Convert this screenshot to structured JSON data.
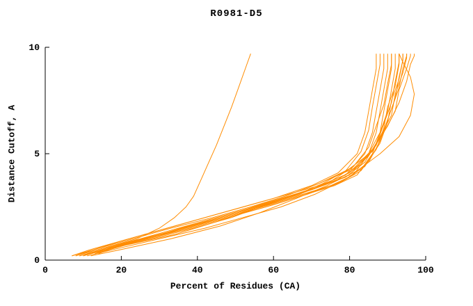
{
  "colors": {
    "line": "#ff8c00",
    "axis": "#000000",
    "background": "#ffffff"
  },
  "chart_data": {
    "type": "line",
    "title": "R0981-D5",
    "xlabel": "Percent of Residues (CA)",
    "ylabel": "Distance Cutoff, A",
    "xlim": [
      0,
      100
    ],
    "ylim": [
      0,
      10
    ],
    "x_ticks": [
      0,
      20,
      40,
      60,
      80,
      100
    ],
    "y_ticks": [
      0,
      5,
      10
    ],
    "grid": false,
    "legend": "none",
    "line_color": "#ff8c00",
    "series": [
      {
        "points": [
          [
            7,
            0.2
          ],
          [
            12,
            0.5
          ],
          [
            22,
            1
          ],
          [
            32,
            1.5
          ],
          [
            42,
            2
          ],
          [
            52,
            2.5
          ],
          [
            62,
            3
          ],
          [
            72,
            3.5
          ],
          [
            79,
            4
          ],
          [
            84,
            5
          ],
          [
            86,
            6
          ],
          [
            87,
            7
          ],
          [
            88,
            8
          ],
          [
            89,
            9
          ],
          [
            89,
            9.7
          ]
        ]
      },
      {
        "points": [
          [
            8,
            0.2
          ],
          [
            14,
            0.5
          ],
          [
            25,
            1
          ],
          [
            35,
            1.5
          ],
          [
            45,
            2
          ],
          [
            55,
            2.5
          ],
          [
            64,
            3
          ],
          [
            73,
            3.5
          ],
          [
            80,
            4
          ],
          [
            85,
            5
          ],
          [
            87,
            6
          ],
          [
            88,
            7
          ],
          [
            89,
            8
          ],
          [
            90,
            9
          ],
          [
            90,
            9.7
          ]
        ]
      },
      {
        "points": [
          [
            9,
            0.2
          ],
          [
            15,
            0.5
          ],
          [
            26,
            1
          ],
          [
            36,
            1.5
          ],
          [
            47,
            2
          ],
          [
            57,
            2.5
          ],
          [
            66,
            3
          ],
          [
            75,
            3.5
          ],
          [
            81,
            4
          ],
          [
            85,
            5
          ],
          [
            88,
            6
          ],
          [
            89,
            7
          ],
          [
            90,
            8
          ],
          [
            91,
            9
          ],
          [
            91,
            9.7
          ]
        ]
      },
      {
        "points": [
          [
            10,
            0.2
          ],
          [
            16,
            0.5
          ],
          [
            27,
            1
          ],
          [
            38,
            1.5
          ],
          [
            48,
            2
          ],
          [
            58,
            2.5
          ],
          [
            67,
            3
          ],
          [
            76,
            3.5
          ],
          [
            82,
            4
          ],
          [
            86,
            5
          ],
          [
            88,
            6
          ],
          [
            90,
            7
          ],
          [
            91,
            8
          ],
          [
            92,
            9
          ],
          [
            92,
            9.7
          ]
        ]
      },
      {
        "points": [
          [
            11,
            0.3
          ],
          [
            17,
            0.6
          ],
          [
            28,
            1.1
          ],
          [
            39,
            1.6
          ],
          [
            49,
            2.1
          ],
          [
            59,
            2.6
          ],
          [
            68,
            3.1
          ],
          [
            77,
            3.6
          ],
          [
            83,
            4.2
          ],
          [
            87,
            5.2
          ],
          [
            89,
            6.2
          ],
          [
            90,
            7.2
          ],
          [
            92,
            8.2
          ],
          [
            93,
            9.2
          ],
          [
            93,
            9.7
          ]
        ]
      },
      {
        "points": [
          [
            12,
            0.3
          ],
          [
            18,
            0.6
          ],
          [
            29,
            1.1
          ],
          [
            40,
            1.6
          ],
          [
            50,
            2.1
          ],
          [
            60,
            2.6
          ],
          [
            69,
            3.1
          ],
          [
            78,
            3.7
          ],
          [
            84,
            4.4
          ],
          [
            88,
            5.5
          ],
          [
            90,
            6.5
          ],
          [
            91,
            7.5
          ],
          [
            93,
            8.5
          ],
          [
            94,
            9.4
          ],
          [
            94,
            9.7
          ]
        ]
      },
      {
        "points": [
          [
            13,
            0.3
          ],
          [
            19,
            0.7
          ],
          [
            30,
            1.2
          ],
          [
            41,
            1.7
          ],
          [
            51,
            2.2
          ],
          [
            61,
            2.8
          ],
          [
            70,
            3.3
          ],
          [
            79,
            3.9
          ],
          [
            84,
            4.6
          ],
          [
            88,
            5.8
          ],
          [
            91,
            6.8
          ],
          [
            92,
            7.8
          ],
          [
            94,
            8.8
          ],
          [
            95,
            9.5
          ],
          [
            95,
            9.7
          ]
        ]
      },
      {
        "points": [
          [
            14,
            0.3
          ],
          [
            20,
            0.7
          ],
          [
            31,
            1.2
          ],
          [
            42,
            1.8
          ],
          [
            52,
            2.3
          ],
          [
            62,
            2.9
          ],
          [
            71,
            3.4
          ],
          [
            80,
            4.1
          ],
          [
            85,
            4.9
          ],
          [
            89,
            6
          ],
          [
            92,
            7
          ],
          [
            93,
            8
          ],
          [
            95,
            9
          ],
          [
            96,
            9.6
          ],
          [
            96,
            9.7
          ]
        ]
      },
      {
        "points": [
          [
            15,
            0.4
          ],
          [
            21,
            0.8
          ],
          [
            32,
            1.3
          ],
          [
            43,
            1.9
          ],
          [
            53,
            2.4
          ],
          [
            63,
            3
          ],
          [
            72,
            3.6
          ],
          [
            81,
            4.3
          ],
          [
            86,
            5.2
          ],
          [
            90,
            6.3
          ],
          [
            93,
            7.4
          ],
          [
            95,
            8.4
          ],
          [
            96,
            9.2
          ],
          [
            97,
            9.6
          ],
          [
            97,
            9.7
          ]
        ]
      },
      {
        "points": [
          [
            12,
            0.2
          ],
          [
            20,
            0.5
          ],
          [
            33,
            1
          ],
          [
            46,
            1.6
          ],
          [
            56,
            2.2
          ],
          [
            66,
            2.9
          ],
          [
            74,
            3.5
          ],
          [
            82,
            4.2
          ],
          [
            88,
            5
          ],
          [
            93,
            5.8
          ],
          [
            96,
            6.8
          ],
          [
            97,
            7.8
          ],
          [
            96,
            8.6
          ],
          [
            94,
            9.3
          ],
          [
            93,
            9.7
          ]
        ]
      },
      {
        "points": [
          [
            8,
            0.2
          ],
          [
            13,
            0.5
          ],
          [
            23,
            1
          ],
          [
            33,
            1.5
          ],
          [
            44,
            2
          ],
          [
            54,
            2.5
          ],
          [
            63,
            3
          ],
          [
            72,
            3.6
          ],
          [
            79,
            4.2
          ],
          [
            83,
            5.1
          ],
          [
            85,
            6.1
          ],
          [
            86,
            7.2
          ],
          [
            87,
            8.2
          ],
          [
            88,
            9.2
          ],
          [
            88,
            9.7
          ]
        ]
      },
      {
        "points": [
          [
            10,
            0.2
          ],
          [
            17,
            0.6
          ],
          [
            29,
            1.1
          ],
          [
            40,
            1.7
          ],
          [
            50,
            2.2
          ],
          [
            59,
            2.7
          ],
          [
            68,
            3.2
          ],
          [
            77,
            3.8
          ],
          [
            83,
            4.5
          ],
          [
            87,
            5.4
          ],
          [
            89,
            6.4
          ],
          [
            91,
            7.4
          ],
          [
            92,
            8.4
          ],
          [
            93,
            9.3
          ],
          [
            93,
            9.7
          ]
        ]
      },
      {
        "points": [
          [
            11,
            0.2
          ],
          [
            18,
            0.5
          ],
          [
            30,
            1
          ],
          [
            42,
            1.5
          ],
          [
            52,
            2
          ],
          [
            62,
            2.5
          ],
          [
            71,
            3.1
          ],
          [
            79,
            3.8
          ],
          [
            85,
            4.6
          ],
          [
            88,
            5.6
          ],
          [
            90,
            6.6
          ],
          [
            92,
            7.6
          ],
          [
            93,
            8.6
          ],
          [
            94,
            9.4
          ],
          [
            94,
            9.7
          ]
        ]
      },
      {
        "points": [
          [
            9,
            0.2
          ],
          [
            16,
            0.5
          ],
          [
            28,
            1
          ],
          [
            39,
            1.5
          ],
          [
            49,
            2
          ],
          [
            58,
            2.6
          ],
          [
            67,
            3.1
          ],
          [
            75,
            3.7
          ],
          [
            81,
            4.4
          ],
          [
            85,
            5.3
          ],
          [
            87,
            6.3
          ],
          [
            89,
            7.3
          ],
          [
            90,
            8.3
          ],
          [
            91,
            9.2
          ],
          [
            91,
            9.7
          ]
        ]
      },
      {
        "points": [
          [
            13,
            0.3
          ],
          [
            21,
            0.7
          ],
          [
            34,
            1.2
          ],
          [
            45,
            1.8
          ],
          [
            55,
            2.4
          ],
          [
            65,
            3
          ],
          [
            73,
            3.6
          ],
          [
            80,
            4.3
          ],
          [
            86,
            5.1
          ],
          [
            89,
            6.1
          ],
          [
            91,
            7.1
          ],
          [
            93,
            8.1
          ],
          [
            94,
            9
          ],
          [
            95,
            9.6
          ],
          [
            95,
            9.7
          ]
        ]
      },
      {
        "points": [
          [
            7,
            0.2
          ],
          [
            11,
            0.4
          ],
          [
            20,
            0.9
          ],
          [
            30,
            1.4
          ],
          [
            40,
            1.9
          ],
          [
            50,
            2.4
          ],
          [
            60,
            2.9
          ],
          [
            70,
            3.5
          ],
          [
            77,
            4.1
          ],
          [
            82,
            5
          ],
          [
            84,
            6
          ],
          [
            85,
            7
          ],
          [
            86,
            8
          ],
          [
            87,
            9
          ],
          [
            87,
            9.7
          ]
        ]
      },
      {
        "points": [
          [
            10,
            0.3
          ],
          [
            16,
            0.6
          ],
          [
            24,
            1
          ],
          [
            30,
            1.5
          ],
          [
            34,
            2
          ],
          [
            37,
            2.5
          ],
          [
            39,
            3
          ],
          [
            41,
            3.8
          ],
          [
            43,
            4.6
          ],
          [
            45,
            5.4
          ],
          [
            47,
            6.3
          ],
          [
            49,
            7.2
          ],
          [
            51,
            8.2
          ],
          [
            53,
            9.2
          ],
          [
            54,
            9.7
          ]
        ]
      }
    ]
  }
}
